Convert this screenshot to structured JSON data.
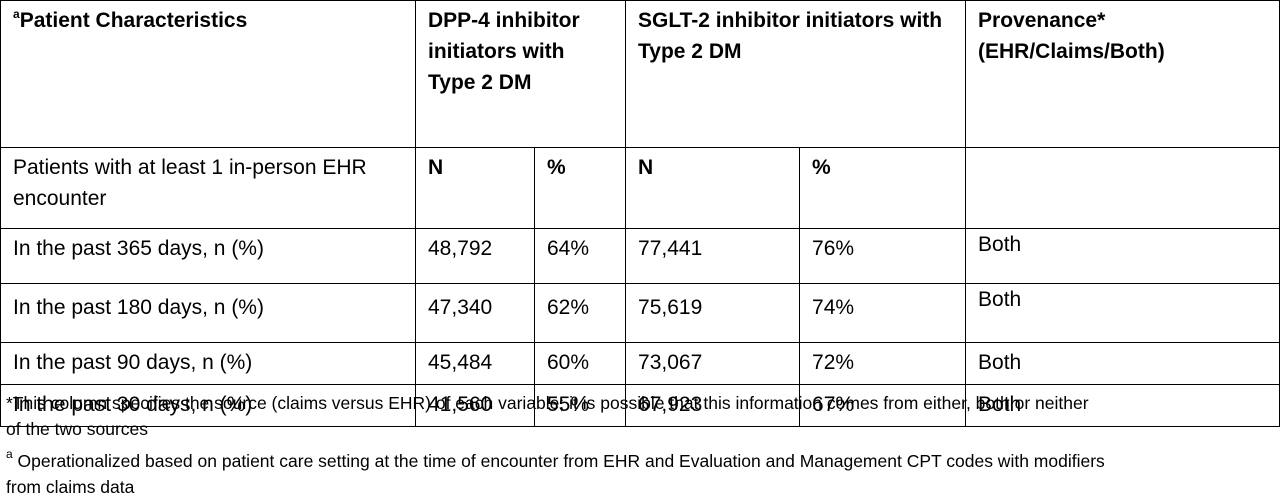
{
  "table": {
    "header": {
      "superscript_a": "a",
      "characteristics": "Patient Characteristics",
      "dpp4": "DPP-4 inhibitor initiators with Type 2 DM",
      "sglt2": "SGLT-2 inhibitor initiators with Type 2 DM",
      "provenance": "Provenance* (EHR/Claims/Both)"
    },
    "subheader": {
      "label": "Patients with at least 1 in-person EHR encounter",
      "dpp4_n": "N",
      "dpp4_pct": "%",
      "sglt2_n": "N",
      "sglt2_pct": "%",
      "provenance": ""
    },
    "rows": [
      {
        "label": "In the past 365 days, n (%)",
        "dpp4_n": "48,792",
        "dpp4_pct": "64%",
        "sglt2_n": "77,441",
        "sglt2_pct": "76%",
        "provenance": "Both"
      },
      {
        "label": "In the past 180 days, n (%)",
        "dpp4_n": "47,340",
        "dpp4_pct": "62%",
        "sglt2_n": "75,619",
        "sglt2_pct": "74%",
        "provenance": "Both"
      },
      {
        "label": "In the past 90 days, n (%)",
        "dpp4_n": "45,484",
        "dpp4_pct": "60%",
        "sglt2_n": "73,067",
        "sglt2_pct": "72%",
        "provenance": "Both"
      },
      {
        "label": "In the past 30 days, n (%)",
        "dpp4_n": "41,560",
        "dpp4_pct": "55%",
        "sglt2_n": "67,923",
        "sglt2_pct": "67%",
        "provenance": "Both"
      }
    ]
  },
  "footnotes": {
    "star": "*This column specifies the source (claims versus EHR) of each variable; it is possible that this information comes from either, both or neither of the two sources",
    "a_marker": "a",
    "a_text": " Operationalized based on patient care setting at the time of encounter from EHR and Evaluation and Management CPT  codes with modifiers from claims data"
  }
}
